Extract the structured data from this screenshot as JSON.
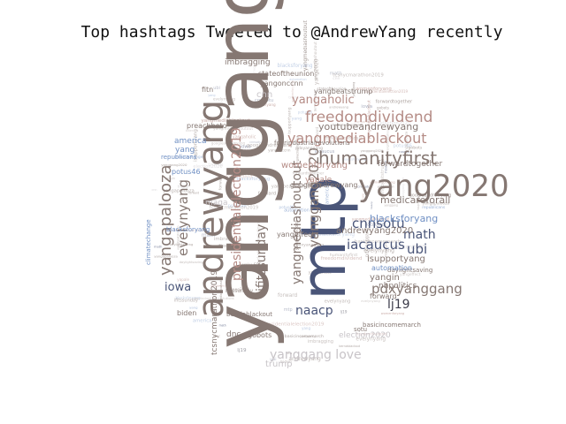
{
  "title": "Top hashtags Tweeted to @AndrewYang recently",
  "colors": {
    "gray": "#857772",
    "slate": "#4a5578",
    "rose": "#b58c86",
    "blue": "#6f8fc3",
    "light": "#c8c4c8",
    "dark": "#3b3b4a"
  },
  "words": [
    {
      "text": "yanggang",
      "color": "gray"
    },
    {
      "text": "mtp",
      "color": "slate"
    },
    {
      "text": "andrewyang",
      "color": "gray"
    },
    {
      "text": "yang2020",
      "color": "gray"
    },
    {
      "text": "humanityfirst",
      "color": "gray"
    },
    {
      "text": "freedomdividend",
      "color": "rose"
    },
    {
      "text": "yangmediablackout",
      "color": "rose"
    },
    {
      "text": "yangaholic",
      "color": "rose"
    },
    {
      "text": "yangapalooza",
      "color": "gray"
    },
    {
      "text": "presidentialelection2019",
      "color": "rose"
    },
    {
      "text": "evelynyang",
      "color": "gray"
    },
    {
      "text": "yangmediashoutout",
      "color": "gray"
    },
    {
      "text": "yanggang2020",
      "color": "gray"
    },
    {
      "text": "ifitssunday",
      "color": "gray"
    },
    {
      "text": "pdxyanggang",
      "color": "gray"
    },
    {
      "text": "iacaucus",
      "color": "slate"
    },
    {
      "text": "cnnsotu",
      "color": "slate"
    },
    {
      "text": "math",
      "color": "slate"
    },
    {
      "text": "ubi",
      "color": "slate"
    },
    {
      "text": "naacp",
      "color": "slate"
    },
    {
      "text": "lj19",
      "color": "dark"
    },
    {
      "text": "iowa",
      "color": "slate"
    },
    {
      "text": "yanggang love",
      "color": "light"
    },
    {
      "text": "blacksforyang",
      "color": "blue"
    },
    {
      "text": "medicareforall",
      "color": "gray"
    },
    {
      "text": "andrewyang2020",
      "color": "gray"
    },
    {
      "text": "isupportyang",
      "color": "gray"
    },
    {
      "text": "yangin",
      "color": "gray"
    },
    {
      "text": "youtubeandrewyang",
      "color": "gray"
    },
    {
      "text": "womenforyang",
      "color": "rose"
    },
    {
      "text": "yangonccnn",
      "color": "gray"
    },
    {
      "text": "stateoftheunion",
      "color": "gray"
    },
    {
      "text": "imbragging",
      "color": "gray"
    },
    {
      "text": "yangbeatstrump",
      "color": "gray"
    },
    {
      "text": "forwardtogether",
      "color": "gray"
    },
    {
      "text": "cnn",
      "color": "light"
    },
    {
      "text": "fitn",
      "color": "gray"
    },
    {
      "text": "america",
      "color": "blue"
    },
    {
      "text": "yang",
      "color": "blue"
    },
    {
      "text": "potus46",
      "color": "blue"
    },
    {
      "text": "republicans",
      "color": "blue"
    },
    {
      "text": "preachbeto",
      "color": "gray"
    },
    {
      "text": "nhpolitics",
      "color": "gray"
    },
    {
      "text": "forward",
      "color": "gray"
    },
    {
      "text": "dnc",
      "color": "gray"
    },
    {
      "text": "biden",
      "color": "gray"
    },
    {
      "text": "trump",
      "color": "light"
    },
    {
      "text": "berniablackout",
      "color": "gray"
    },
    {
      "text": "daylightsaving",
      "color": "gray"
    },
    {
      "text": "tcsnycmarathon2019",
      "color": "gray"
    },
    {
      "text": "yangeffect",
      "color": "gray"
    },
    {
      "text": "automation",
      "color": "blue"
    },
    {
      "text": "gobots",
      "color": "gray"
    },
    {
      "text": "sotu",
      "color": "gray"
    },
    {
      "text": "yapale",
      "color": "rose"
    },
    {
      "text": "maga",
      "color": "light"
    },
    {
      "text": "googleandrewyang",
      "color": "gray"
    },
    {
      "text": "basicincomemarch",
      "color": "gray"
    },
    {
      "text": "fourindustrialrevolutions",
      "color": "gray"
    },
    {
      "text": "election2020",
      "color": "light"
    },
    {
      "text": "climatechange",
      "color": "blue"
    },
    {
      "text": "blacksforyang",
      "color": "blue"
    }
  ]
}
